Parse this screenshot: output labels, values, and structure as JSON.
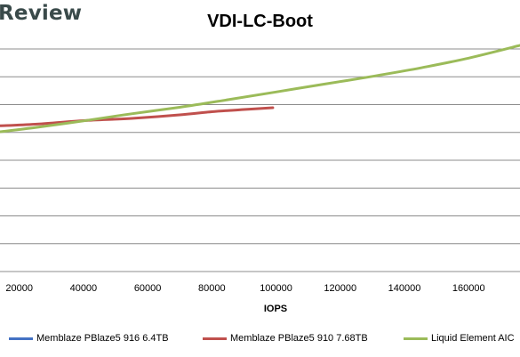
{
  "logo_text": "Review",
  "chart_data": {
    "type": "line",
    "title": "VDI-LC-Boot",
    "xlabel": "IOPS",
    "ylabel": "",
    "xlim": [
      14000,
      176000
    ],
    "x_ticks": [
      20000,
      40000,
      60000,
      80000,
      100000,
      120000,
      140000,
      160000
    ],
    "x_tick_labels": [
      "20000",
      "40000",
      "60000",
      "80000",
      "100000",
      "120000",
      "140000",
      "160000"
    ],
    "y_gridlines": 9,
    "grid": true,
    "legend_position": "bottom",
    "series": [
      {
        "name": "Memblaze PBlaze5 916 6.4TB",
        "color": "#4472c4",
        "points": []
      },
      {
        "name": "Memblaze PBlaze5 910 7.68TB",
        "color": "#c0504d",
        "points": [
          [
            14000,
            0.345
          ],
          [
            25000,
            0.338
          ],
          [
            40000,
            0.322
          ],
          [
            55000,
            0.312
          ],
          [
            70000,
            0.296
          ],
          [
            80000,
            0.282
          ],
          [
            90000,
            0.272
          ],
          [
            99000,
            0.264
          ]
        ]
      },
      {
        "name": "Liquid Element AIC",
        "color": "#9bbb59",
        "points": [
          [
            14000,
            0.372
          ],
          [
            25000,
            0.353
          ],
          [
            40000,
            0.323
          ],
          [
            55000,
            0.291
          ],
          [
            70000,
            0.262
          ],
          [
            85000,
            0.228
          ],
          [
            100000,
            0.193
          ],
          [
            115000,
            0.158
          ],
          [
            130000,
            0.123
          ],
          [
            145000,
            0.085
          ],
          [
            160000,
            0.041
          ],
          [
            176000,
            -0.016
          ]
        ]
      }
    ]
  }
}
